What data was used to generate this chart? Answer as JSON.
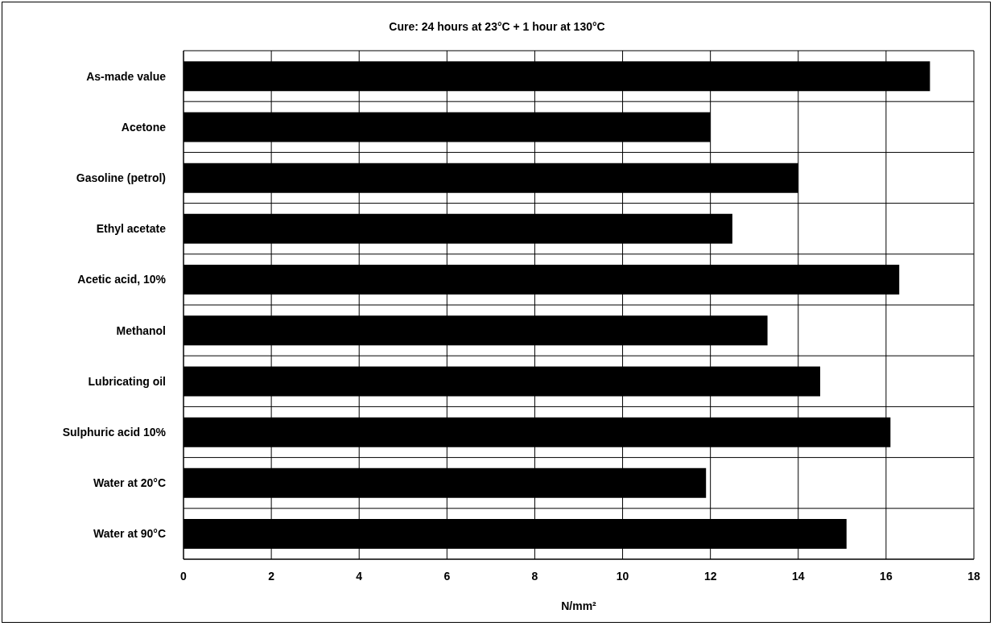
{
  "chart_data": {
    "type": "bar",
    "orientation": "horizontal",
    "title": "Cure: 24 hours at 23°C + 1 hour at 130°C",
    "xlabel": "N/mm²",
    "categories": [
      "As-made value",
      "Acetone",
      "Gasoline (petrol)",
      "Ethyl acetate",
      "Acetic acid, 10%",
      "Methanol",
      "Lubricating oil",
      "Sulphuric acid 10%",
      "Water at 20°C",
      "Water at 90°C"
    ],
    "values": [
      17.0,
      12.0,
      14.0,
      12.5,
      16.3,
      13.3,
      14.5,
      16.1,
      11.9,
      15.1
    ],
    "color": "#000000",
    "xlim": [
      0,
      18
    ],
    "xticks": [
      0,
      2,
      4,
      6,
      8,
      10,
      12,
      14,
      16,
      18
    ],
    "grid": true
  }
}
